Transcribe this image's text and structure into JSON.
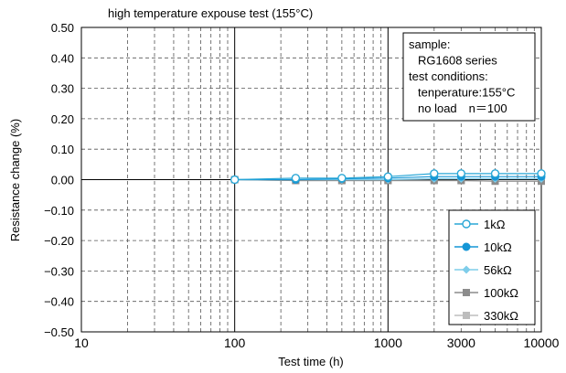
{
  "chart_data": {
    "type": "line",
    "title": "high temperature expouse test (155°C)",
    "xlabel": "Test time (h)",
    "ylabel": "Resistance change (%)",
    "x_scale": "log",
    "xlim": [
      10,
      10000
    ],
    "ylim": [
      -0.5,
      0.5
    ],
    "x_ticks": [
      10,
      100,
      1000,
      3000,
      10000
    ],
    "x_tick_labels": [
      "10",
      "100",
      "1000",
      "3000",
      "10000"
    ],
    "y_ticks": [
      0.5,
      0.4,
      0.3,
      0.2,
      0.1,
      0.0,
      -0.1,
      -0.2,
      -0.3,
      -0.4,
      -0.5
    ],
    "y_tick_labels": [
      "0.50",
      "0.40",
      "0.30",
      "0.20",
      "0.10",
      "0.00",
      "−0.10",
      "−0.20",
      "−0.30",
      "−0.40",
      "−0.50"
    ],
    "grid": true,
    "legend_position": "bottom-right",
    "annotation": [
      "sample:",
      "RG1608 series",
      "test conditions:",
      "tenperature:155°C",
      "no load　n＝100"
    ],
    "x": [
      100,
      250,
      500,
      1000,
      2000,
      3000,
      5000,
      10000
    ],
    "series": [
      {
        "name": "1kΩ",
        "marker": "open-circle",
        "color": "#2aa7d6",
        "values": [
          0.0,
          0.005,
          0.005,
          0.01,
          0.02,
          0.02,
          0.02,
          0.02
        ]
      },
      {
        "name": "10kΩ",
        "marker": "filled-circle",
        "color": "#1596d6",
        "values": [
          0.0,
          0.0,
          0.003,
          0.005,
          0.01,
          0.01,
          0.01,
          0.01
        ]
      },
      {
        "name": "56kΩ",
        "marker": "diamond",
        "color": "#7fcdea",
        "values": [
          0.0,
          0.0,
          0.0,
          0.0,
          0.003,
          0.003,
          0.003,
          0.003
        ]
      },
      {
        "name": "100kΩ",
        "marker": "square",
        "color": "#8c8c8c",
        "values": [
          0.0,
          -0.003,
          -0.003,
          -0.003,
          -0.003,
          -0.003,
          -0.005,
          -0.005
        ]
      },
      {
        "name": "330kΩ",
        "marker": "square",
        "color": "#bdbdbd",
        "values": [
          0.0,
          -0.003,
          -0.003,
          -0.003,
          -0.003,
          -0.003,
          -0.005,
          -0.005
        ]
      }
    ]
  }
}
